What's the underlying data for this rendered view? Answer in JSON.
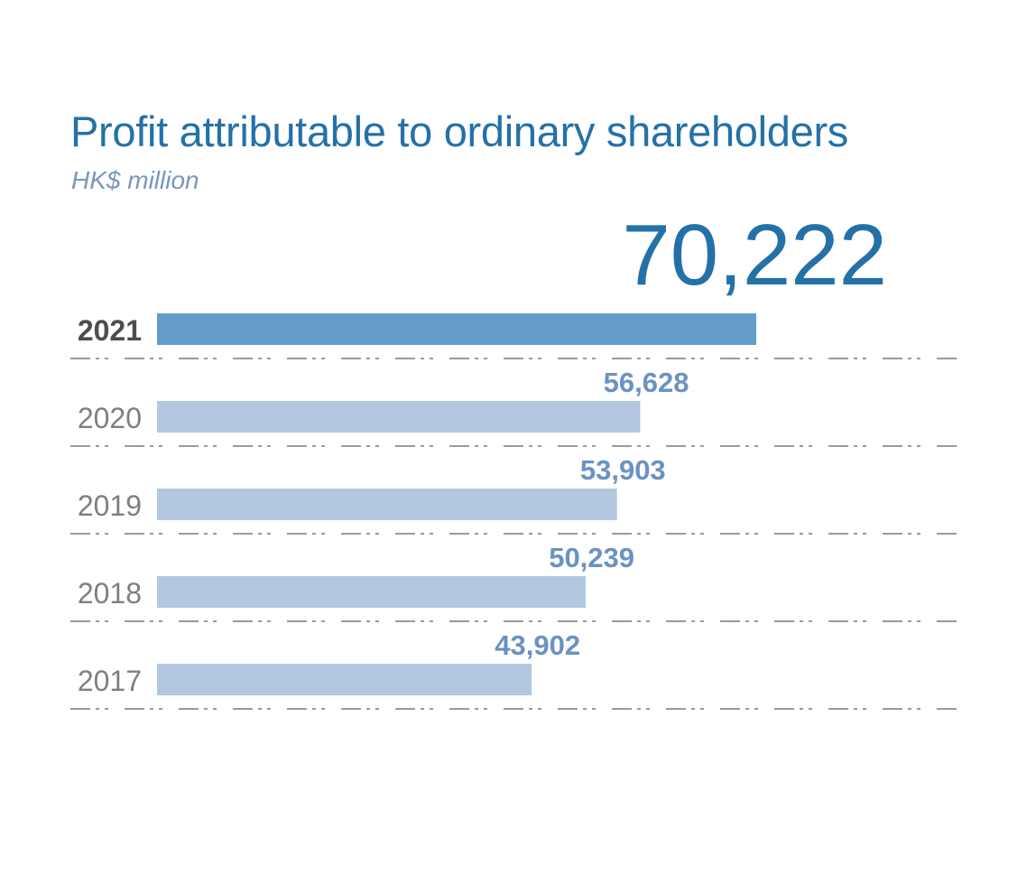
{
  "colors": {
    "title": "#2471a8",
    "subtitle": "#7a96bf",
    "highlight_bar": "#639dc8",
    "bar": "#b2c8e1",
    "highlight_value": "#2471a8",
    "value": "#6a92c2",
    "highlight_year": "#4d4d4d",
    "year": "#7f7f7f",
    "gridline": "#9a9a9a"
  },
  "chart_data": {
    "type": "bar",
    "orientation": "horizontal",
    "title": "Profit attributable to ordinary shareholders",
    "subtitle": "HK$ million",
    "categories": [
      "2021",
      "2020",
      "2019",
      "2018",
      "2017"
    ],
    "values": [
      70222,
      56628,
      53903,
      50239,
      43902
    ],
    "value_labels": [
      "70,222",
      "56,628",
      "53,903",
      "50,239",
      "43,902"
    ],
    "highlight_index": 0,
    "xlim": [
      0,
      70222
    ],
    "grid": false
  }
}
